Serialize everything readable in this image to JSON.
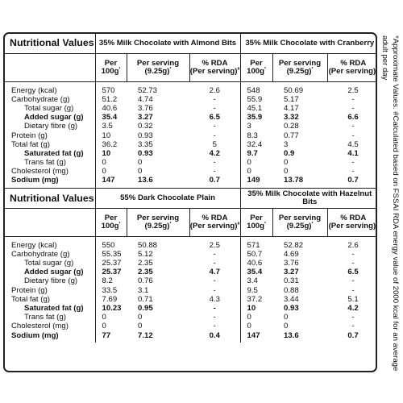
{
  "sections": [
    {
      "title": "Nutritional Values",
      "products": [
        {
          "name": "35% Milk Chocolate with Almond Bits",
          "values": [
            [
              "570",
              "52.73",
              "2.6"
            ],
            [
              "51.2",
              "4.74",
              "-"
            ],
            [
              "40.6",
              "3.76",
              "-"
            ],
            [
              "35.4",
              "3.27",
              "6.5"
            ],
            [
              "3.5",
              "0.32",
              "-"
            ],
            [
              "10",
              "0.93",
              "-"
            ],
            [
              "36.2",
              "3.35",
              "5"
            ],
            [
              "10",
              "0.93",
              "4.2"
            ],
            [
              "0",
              "0",
              "-"
            ],
            [
              "0",
              "0",
              "-"
            ],
            [
              "147",
              "13.6",
              "0.7"
            ]
          ]
        },
        {
          "name": "35% Milk Chocolate with Cranberry",
          "values": [
            [
              "548",
              "50.69",
              "2.5"
            ],
            [
              "55.9",
              "5.17",
              "-"
            ],
            [
              "45.1",
              "4.17",
              "-"
            ],
            [
              "35.9",
              "3.32",
              "6.6"
            ],
            [
              "3",
              "0.28",
              "-"
            ],
            [
              "8.3",
              "0.77",
              "-"
            ],
            [
              "32.4",
              "3",
              "4.5"
            ],
            [
              "9.7",
              "0.9",
              "4.1"
            ],
            [
              "0",
              "0",
              "-"
            ],
            [
              "0",
              "0",
              "-"
            ],
            [
              "149",
              "13.78",
              "0.7"
            ]
          ]
        }
      ]
    },
    {
      "title": "Nutritional Values",
      "products": [
        {
          "name": "55% Dark Chocolate Plain",
          "values": [
            [
              "550",
              "50.88",
              "2.5"
            ],
            [
              "55.35",
              "5.12",
              "-"
            ],
            [
              "25.37",
              "2.35",
              "-"
            ],
            [
              "25.37",
              "2.35",
              "4.7"
            ],
            [
              "8.2",
              "0.76",
              "-"
            ],
            [
              "33.5",
              "3.1",
              "-"
            ],
            [
              "7.69",
              "0.71",
              "4.3"
            ],
            [
              "10.23",
              "0.95",
              "-"
            ],
            [
              "0",
              "0",
              "-"
            ],
            [
              "0",
              "0",
              "-"
            ],
            [
              "77",
              "7.12",
              "0.4"
            ]
          ]
        },
        {
          "name": "35% Milk Chocolate with Hazelnut Bits",
          "values": [
            [
              "571",
              "52.82",
              "2.6"
            ],
            [
              "50.7",
              "4.69",
              "-"
            ],
            [
              "40.6",
              "3.76",
              "-"
            ],
            [
              "35.4",
              "3.27",
              "6.5"
            ],
            [
              "3.4",
              "0.31",
              "-"
            ],
            [
              "9.5",
              "0.88",
              "-"
            ],
            [
              "37.2",
              "3.44",
              "5.1"
            ],
            [
              "10",
              "0.93",
              "4.2"
            ],
            [
              "0",
              "0",
              "-"
            ],
            [
              "0",
              "0",
              "-"
            ],
            [
              "147",
              "13.6",
              "0.7"
            ]
          ]
        }
      ]
    }
  ],
  "column_headers": {
    "per100_line1": "Per",
    "per100_line2": "100g",
    "per100_mark": "*",
    "serving_line1": "Per serving",
    "serving_line2": "(9.25g)",
    "serving_mark": "*",
    "rda_line1": "% RDA",
    "rda_line2": "(Per serving)",
    "rda_mark": "#"
  },
  "nutrients": [
    {
      "label": "Energy (kcal)",
      "indent": false,
      "bold": false
    },
    {
      "label": "Carbohydrate (g)",
      "indent": false,
      "bold": false
    },
    {
      "label": "Total sugar (g)",
      "indent": true,
      "bold": false
    },
    {
      "label": "Added sugar (g)",
      "indent": true,
      "bold": true
    },
    {
      "label": "Dietary fibre (g)",
      "indent": true,
      "bold": false
    },
    {
      "label": "Protein (g)",
      "indent": false,
      "bold": false
    },
    {
      "label": "Total fat (g)",
      "indent": false,
      "bold": false
    },
    {
      "label": "Saturated fat (g)",
      "indent": true,
      "bold": true
    },
    {
      "label": "Trans fat (g)",
      "indent": true,
      "bold": false
    },
    {
      "label": "Cholesterol (mg)",
      "indent": false,
      "bold": false
    },
    {
      "label": "Sodium (mg)",
      "indent": false,
      "bold": true
    }
  ],
  "footnote": "*Approximate Values. #Calculated based on FSSAI RDA energy value of 2000 kcal for an average adult per day"
}
